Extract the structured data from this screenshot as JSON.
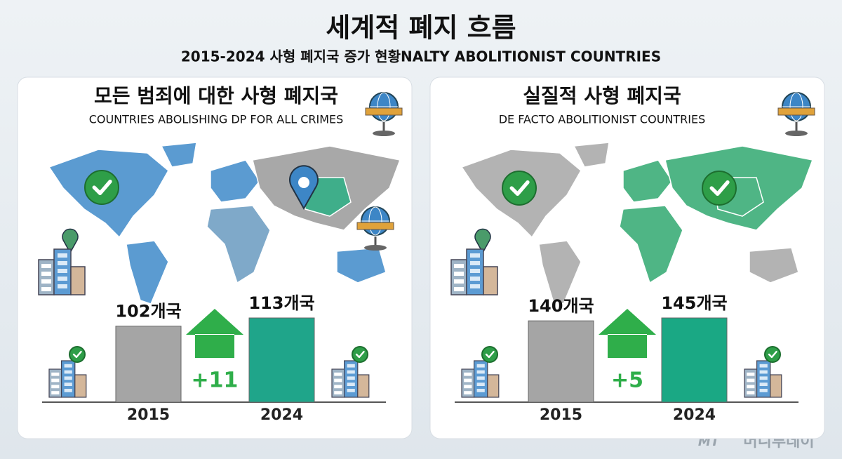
{
  "title": "세계적 폐지 흐름",
  "subtitle": "2015-2024 사형 폐지국 증가 현황NALTY ABOLITIONIST COUNTRIES",
  "chart_data": [
    {
      "type": "bar",
      "title": "모든 범죄에 대한 사형 폐지국",
      "subtitle": "COUNTRIES ABOLISHING DP FOR ALL CRIMES",
      "categories": [
        "2015",
        "2024"
      ],
      "values": [
        102,
        113
      ],
      "value_labels": [
        "102개국",
        "113개국"
      ],
      "colors": [
        "#a5a5a5",
        "#1fa58a"
      ],
      "annotation": "+11"
    },
    {
      "type": "bar",
      "title": "실질적 사형 폐지국",
      "subtitle": "DE FACTO ABOLITIONIST COUNTRIES",
      "categories": [
        "2015",
        "2024"
      ],
      "values": [
        140,
        145
      ],
      "value_labels": [
        "140개국",
        "145개국"
      ],
      "colors": [
        "#a5a5a5",
        "#1aa884"
      ],
      "annotation": "+5"
    }
  ],
  "logo": "MT",
  "watermark": "머니투데이"
}
